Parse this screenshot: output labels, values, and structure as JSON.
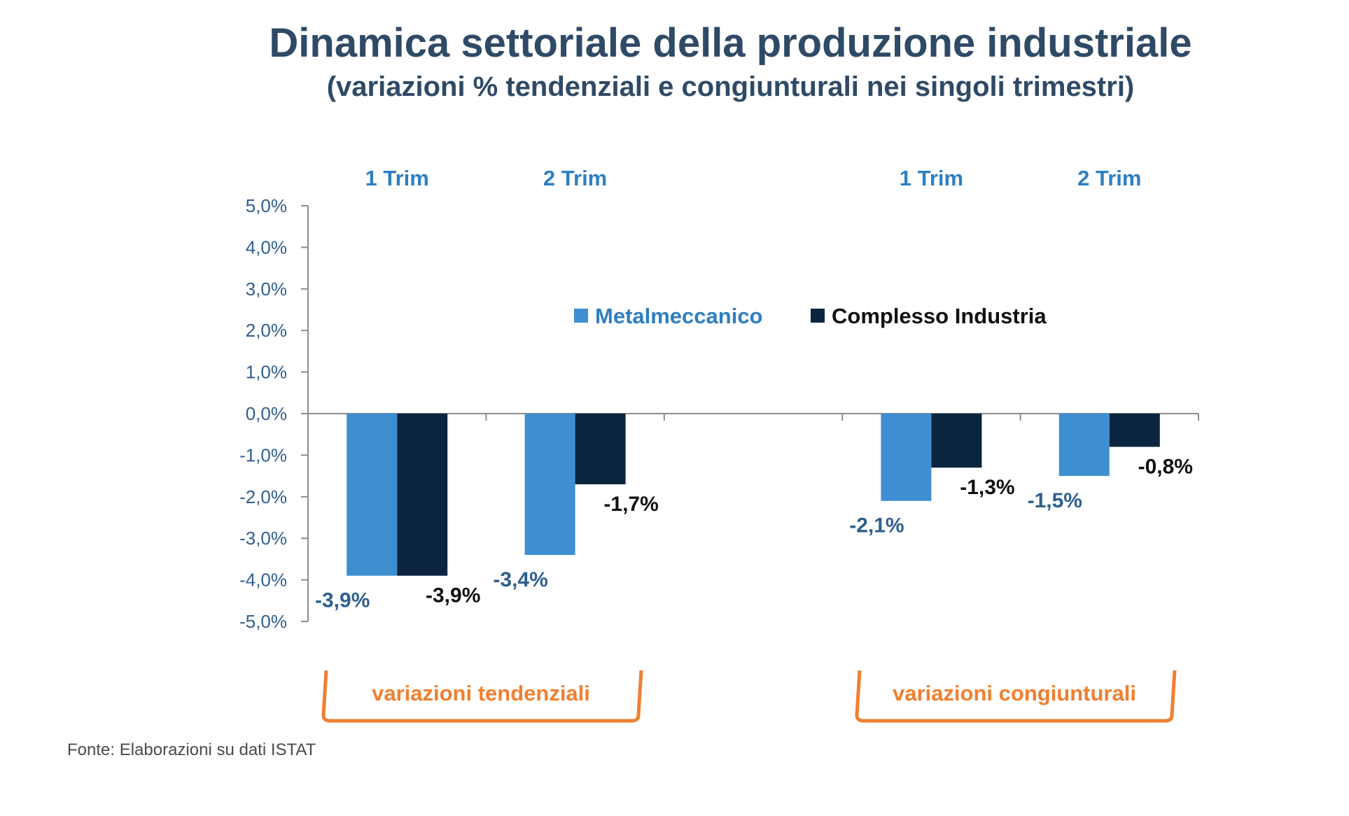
{
  "title": "Dinamica settoriale della produzione industriale",
  "subtitle": "(variazioni % tendenziali e congiunturali nei singoli trimestri)",
  "source": "Fonte: Elaborazioni su dati ISTAT",
  "colors": {
    "metalmeccanico": "#3d8fd1",
    "complesso": "#0b2540",
    "axis_text": "#2f5f8f",
    "quarter_label": "#2e7fc1",
    "bracket": "#f08030",
    "title": "#2f4a66"
  },
  "chart_data": {
    "type": "bar",
    "categories": [
      "1 Trim",
      "2 Trim",
      "",
      "1 Trim",
      "2 Trim"
    ],
    "series": [
      {
        "name": "Metalmeccanico",
        "values": [
          -3.9,
          -3.4,
          null,
          -2.1,
          -1.5
        ],
        "labels": [
          "-3,9%",
          "-3,4%",
          null,
          "-2,1%",
          "-1,5%"
        ]
      },
      {
        "name": "Complesso Industria",
        "values": [
          -3.9,
          -1.7,
          null,
          -1.3,
          -0.8
        ],
        "labels": [
          "-3,9%",
          "-1,7%",
          null,
          "-1,3%",
          "-0,8%"
        ]
      }
    ],
    "ylim": [
      -5,
      5
    ],
    "yticks": [
      5,
      4,
      3,
      2,
      1,
      0,
      -1,
      -2,
      -3,
      -4,
      -5
    ],
    "ytick_labels": [
      "5,0%",
      "4,0%",
      "3,0%",
      "2,0%",
      "1,0%",
      "0,0%",
      "-1,0%",
      "-2,0%",
      "-3,0%",
      "-4,0%",
      "-5,0%"
    ],
    "groups": [
      {
        "label": "variazioni tendenziali"
      },
      {
        "label": "variazioni congiunturali"
      }
    ],
    "legend": {
      "position": "top-center"
    }
  }
}
